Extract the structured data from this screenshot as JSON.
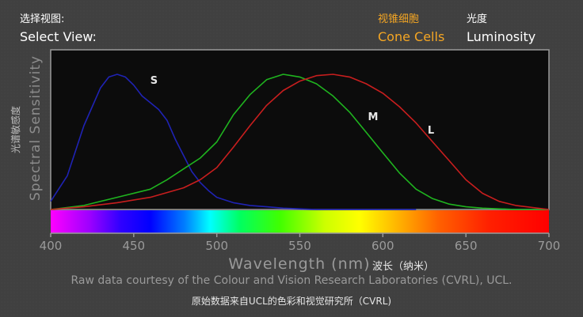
{
  "header": {
    "select_view_cn": "选择视图:",
    "select_view_en": "Select View:",
    "tabs": [
      {
        "label_cn": "视锥细胞",
        "label_en": "Cone Cells",
        "active": true
      },
      {
        "label_cn": "光度",
        "label_en": "Luminosity",
        "active": false
      }
    ]
  },
  "footer": {
    "credit_en": "Raw data courtesy of the Colour and Vision Research Laboratories (CVRL), UCL.",
    "credit_cn": "原始数据来自UCL的色彩和视觉研究所（CVRL)"
  },
  "colors": {
    "S": "#1f23b4",
    "M": "#1fb41f",
    "L": "#c81e1e",
    "accent": "#f5a623"
  },
  "chart_data": {
    "type": "line",
    "ylabel_cn": "光谱敏感度",
    "ylabel_en": "Spectral Sensitivity",
    "xlabel_en": "Wavelength (nm)",
    "xlabel_cn": "波长（纳米）",
    "xlim": [
      400,
      700
    ],
    "ylim": [
      0,
      1
    ],
    "x_ticks": [
      "400",
      "450",
      "500",
      "550",
      "600",
      "650",
      "700"
    ],
    "spectrum_bar": true,
    "series": [
      {
        "name": "S",
        "x": [
          400,
          410,
          420,
          430,
          435,
          440,
          445,
          450,
          455,
          460,
          465,
          470,
          475,
          480,
          485,
          490,
          495,
          500,
          510,
          520,
          530,
          540,
          560,
          580,
          600,
          620
        ],
        "y": [
          0.06,
          0.25,
          0.62,
          0.9,
          0.98,
          1.0,
          0.98,
          0.92,
          0.84,
          0.79,
          0.74,
          0.66,
          0.52,
          0.4,
          0.28,
          0.2,
          0.14,
          0.09,
          0.05,
          0.03,
          0.02,
          0.01,
          0.0,
          0.0,
          0.0,
          0.0
        ]
      },
      {
        "name": "M",
        "x": [
          400,
          420,
          440,
          460,
          470,
          480,
          490,
          500,
          510,
          520,
          530,
          540,
          545,
          550,
          560,
          570,
          580,
          590,
          600,
          610,
          620,
          630,
          640,
          650,
          660,
          680,
          700
        ],
        "y": [
          0.0,
          0.03,
          0.09,
          0.15,
          0.22,
          0.3,
          0.38,
          0.5,
          0.7,
          0.85,
          0.96,
          1.0,
          0.99,
          0.98,
          0.93,
          0.84,
          0.72,
          0.57,
          0.42,
          0.27,
          0.15,
          0.08,
          0.04,
          0.02,
          0.01,
          0.0,
          0.0
        ]
      },
      {
        "name": "L",
        "x": [
          400,
          420,
          440,
          460,
          480,
          490,
          500,
          510,
          520,
          530,
          540,
          550,
          560,
          570,
          580,
          590,
          600,
          610,
          620,
          630,
          640,
          650,
          660,
          670,
          680,
          700
        ],
        "y": [
          0.0,
          0.02,
          0.05,
          0.09,
          0.16,
          0.22,
          0.31,
          0.46,
          0.62,
          0.77,
          0.88,
          0.95,
          0.99,
          1.0,
          0.98,
          0.93,
          0.86,
          0.76,
          0.64,
          0.5,
          0.36,
          0.22,
          0.12,
          0.06,
          0.03,
          0.0
        ]
      }
    ],
    "series_labels": [
      {
        "name": "S",
        "x": 460,
        "y": 0.93
      },
      {
        "name": "M",
        "x": 591,
        "y": 0.66
      },
      {
        "name": "L",
        "x": 627,
        "y": 0.56
      }
    ]
  }
}
